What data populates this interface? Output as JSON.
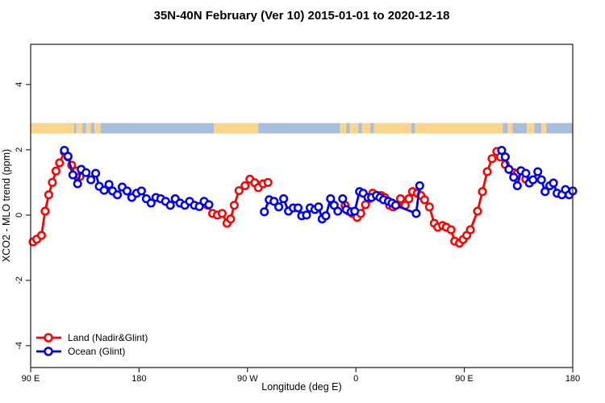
{
  "chart_data": {
    "type": "line",
    "title": "35N-40N February (Ver 10)  2015-01-01 to 2020-12-18",
    "xlabel": "Longitude (deg E)",
    "ylabel": "XCO2 - MLO trend (ppm)",
    "xlim": [
      90,
      540
    ],
    "ylim": [
      -4.67,
      5.23
    ],
    "grid": false,
    "legend_position": "bottom-left",
    "x_ticks": {
      "values": [
        90,
        180,
        270,
        360,
        450,
        540
      ],
      "labels": [
        "90 E",
        "180",
        "90 W",
        "0",
        "90 E",
        "180"
      ]
    },
    "y_ticks": {
      "values": [
        -4,
        -2,
        0,
        2,
        4
      ],
      "labels": [
        "-4",
        "-2",
        "0",
        "2",
        "4"
      ]
    },
    "land_ocean_band": {
      "description": "land/ocean mask strip along longitude",
      "y_range_ppm": [
        2.5,
        2.82
      ],
      "land_color": "#FAD58B",
      "ocean_color": "#A9BEDC",
      "segments": [
        {
          "from": 90,
          "to": 126,
          "type": "land"
        },
        {
          "from": 126,
          "to": 128,
          "type": "ocean"
        },
        {
          "from": 128,
          "to": 133,
          "type": "land"
        },
        {
          "from": 133,
          "to": 136,
          "type": "ocean"
        },
        {
          "from": 136,
          "to": 140,
          "type": "land"
        },
        {
          "from": 140,
          "to": 143,
          "type": "ocean"
        },
        {
          "from": 143,
          "to": 148,
          "type": "land"
        },
        {
          "from": 148,
          "to": 242,
          "type": "ocean"
        },
        {
          "from": 242,
          "to": 279,
          "type": "land"
        },
        {
          "from": 279,
          "to": 347,
          "type": "ocean"
        },
        {
          "from": 347,
          "to": 352,
          "type": "land"
        },
        {
          "from": 352,
          "to": 355,
          "type": "ocean"
        },
        {
          "from": 355,
          "to": 362,
          "type": "land"
        },
        {
          "from": 362,
          "to": 365,
          "type": "ocean"
        },
        {
          "from": 365,
          "to": 372,
          "type": "land"
        },
        {
          "from": 372,
          "to": 375,
          "type": "ocean"
        },
        {
          "from": 375,
          "to": 406,
          "type": "land"
        },
        {
          "from": 406,
          "to": 409,
          "type": "ocean"
        },
        {
          "from": 409,
          "to": 482,
          "type": "land"
        },
        {
          "from": 482,
          "to": 486,
          "type": "ocean"
        },
        {
          "from": 486,
          "to": 490,
          "type": "land"
        },
        {
          "from": 490,
          "to": 502,
          "type": "ocean"
        },
        {
          "from": 502,
          "to": 508,
          "type": "land"
        },
        {
          "from": 508,
          "to": 514,
          "type": "ocean"
        },
        {
          "from": 514,
          "to": 518,
          "type": "land"
        },
        {
          "from": 518,
          "to": 540,
          "type": "ocean"
        }
      ]
    },
    "series": [
      {
        "name": "Land (Nadir&Glint)",
        "color": "#FF0000",
        "marker": "open-circle",
        "segments": [
          [
            [
              92,
              -0.82
            ],
            [
              95,
              -0.74
            ],
            [
              99,
              -0.62
            ],
            [
              102,
              0.12
            ],
            [
              105,
              0.62
            ],
            [
              108,
              1.0
            ],
            [
              111,
              1.35
            ],
            [
              114,
              1.6
            ],
            [
              118,
              1.93
            ],
            [
              121,
              1.78
            ],
            [
              124,
              1.53
            ],
            [
              128,
              1.35
            ],
            [
              131,
              1.18
            ]
          ],
          [
            [
              237,
              0.3
            ],
            [
              241,
              0.05
            ],
            [
              245,
              0.0
            ],
            [
              249,
              0.05
            ],
            [
              253,
              -0.25
            ],
            [
              256,
              -0.12
            ],
            [
              259,
              0.3
            ],
            [
              263,
              0.75
            ],
            [
              268,
              0.9
            ],
            [
              272,
              1.1
            ],
            [
              276,
              0.99
            ],
            [
              279,
              0.84
            ],
            [
              283,
              0.96
            ],
            [
              287,
              1.0
            ]
          ],
          [
            [
              351,
              0.3
            ],
            [
              354,
              0.12
            ],
            [
              357,
              0.05
            ],
            [
              361,
              -0.07
            ],
            [
              364,
              0.05
            ],
            [
              368,
              0.32
            ],
            [
              371,
              0.5
            ],
            [
              374,
              0.67
            ],
            [
              378,
              0.6
            ],
            [
              381,
              0.6
            ],
            [
              384,
              0.54
            ],
            [
              388,
              0.3
            ],
            [
              391,
              0.25
            ],
            [
              394,
              0.32
            ],
            [
              397,
              0.5
            ],
            [
              401,
              0.3
            ],
            [
              404,
              0.5
            ],
            [
              407,
              0.72
            ],
            [
              411,
              0.67
            ],
            [
              414,
              0.6
            ],
            [
              417,
              0.47
            ],
            [
              421,
              0.25
            ],
            [
              425,
              -0.25
            ],
            [
              428,
              -0.37
            ],
            [
              432,
              -0.32
            ],
            [
              435,
              -0.37
            ],
            [
              439,
              -0.45
            ],
            [
              442,
              -0.8
            ],
            [
              446,
              -0.86
            ],
            [
              449,
              -0.75
            ],
            [
              452,
              -0.62
            ],
            [
              455,
              -0.45
            ],
            [
              461,
              0.12
            ],
            [
              465,
              0.72
            ],
            [
              469,
              1.33
            ],
            [
              473,
              1.73
            ],
            [
              477,
              1.95
            ],
            [
              480,
              1.78
            ],
            [
              484,
              1.55
            ],
            [
              487,
              1.4
            ],
            [
              491,
              1.3
            ],
            [
              494,
              1.28
            ],
            [
              497,
              1.35
            ],
            [
              501,
              1.1
            ]
          ]
        ]
      },
      {
        "name": "Ocean (Glint)",
        "color": "#0000EE",
        "marker": "open-circle",
        "segments": [
          [
            [
              118,
              1.98
            ],
            [
              121,
              1.8
            ],
            [
              125,
              1.23
            ],
            [
              129,
              0.96
            ],
            [
              132,
              1.4
            ],
            [
              136,
              1.3
            ],
            [
              140,
              1.08
            ],
            [
              144,
              1.28
            ],
            [
              147,
              0.88
            ],
            [
              151,
              0.76
            ],
            [
              155,
              0.94
            ],
            [
              158,
              0.74
            ],
            [
              162,
              0.62
            ],
            [
              166,
              0.86
            ],
            [
              170,
              0.74
            ],
            [
              174,
              0.54
            ],
            [
              178,
              0.67
            ],
            [
              182,
              0.74
            ],
            [
              186,
              0.5
            ],
            [
              190,
              0.37
            ],
            [
              194,
              0.54
            ],
            [
              198,
              0.5
            ],
            [
              202,
              0.42
            ],
            [
              206,
              0.3
            ],
            [
              210,
              0.5
            ],
            [
              214,
              0.37
            ],
            [
              218,
              0.3
            ],
            [
              222,
              0.42
            ],
            [
              226,
              0.3
            ],
            [
              230,
              0.26
            ],
            [
              234,
              0.42
            ],
            [
              238,
              0.32
            ]
          ],
          [
            [
              284,
              0.1
            ],
            [
              288,
              0.47
            ],
            [
              292,
              0.42
            ],
            [
              296,
              0.25
            ],
            [
              300,
              0.5
            ],
            [
              304,
              0.12
            ],
            [
              308,
              0.22
            ],
            [
              312,
              0.22
            ],
            [
              315,
              -0.02
            ],
            [
              319,
              0.0
            ],
            [
              322,
              0.22
            ],
            [
              326,
              0.17
            ],
            [
              329,
              0.25
            ],
            [
              332,
              -0.12
            ],
            [
              335,
              -0.02
            ],
            [
              339,
              0.5
            ],
            [
              342,
              0.3
            ],
            [
              345,
              0.12
            ]
          ],
          [
            [
              349,
              0.5
            ],
            [
              352,
              0.17
            ],
            [
              356,
              0.1
            ],
            [
              359,
              0.12
            ],
            [
              363,
              0.72
            ],
            [
              366,
              0.67
            ],
            [
              370,
              0.54
            ],
            [
              373,
              0.54
            ],
            [
              377,
              0.6
            ],
            [
              380,
              0.54
            ],
            [
              383,
              0.47
            ],
            [
              387,
              0.42
            ],
            [
              390,
              0.37
            ],
            [
              393,
              0.3
            ],
            [
              410,
              0.05
            ],
            [
              413,
              0.9
            ]
          ],
          [
            [
              481,
              1.98
            ],
            [
              484,
              1.78
            ],
            [
              487,
              1.4
            ],
            [
              491,
              1.16
            ],
            [
              494,
              0.9
            ],
            [
              497,
              1.36
            ],
            [
              501,
              1.28
            ],
            [
              504,
              0.98
            ],
            [
              507,
              1.08
            ],
            [
              511,
              1.33
            ],
            [
              514,
              1.08
            ],
            [
              517,
              0.72
            ],
            [
              521,
              0.9
            ],
            [
              524,
              0.98
            ],
            [
              527,
              0.67
            ],
            [
              531,
              0.62
            ],
            [
              534,
              0.78
            ],
            [
              537,
              0.62
            ],
            [
              540,
              0.74
            ]
          ]
        ]
      }
    ]
  },
  "legend": {
    "items": [
      {
        "label": "Land (Nadir&Glint)",
        "color": "#FF0000"
      },
      {
        "label": "Ocean (Glint)",
        "color": "#0000EE"
      }
    ]
  }
}
